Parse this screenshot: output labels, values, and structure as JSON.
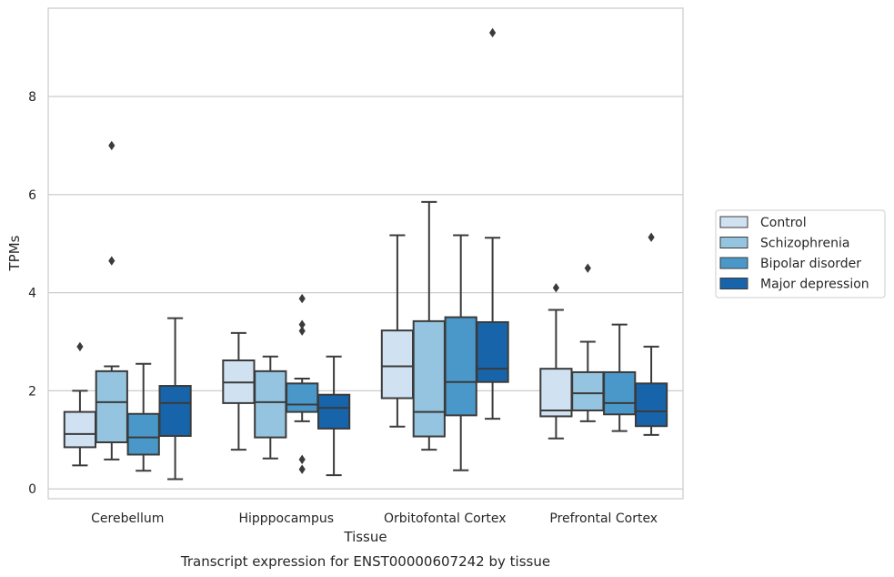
{
  "chart_data": {
    "type": "box",
    "caption": "Transcript expression for ENST00000607242 by tissue",
    "xlabel": "Tissue",
    "ylabel": "TPMs",
    "ylim": [
      -0.2,
      9.8
    ],
    "yticks": [
      0,
      2,
      4,
      6,
      8
    ],
    "grid": true,
    "legend_position": "right",
    "categories": [
      "Cerebellum",
      "Hipppocampus",
      "Orbitofontal Cortex",
      "Prefrontal Cortex"
    ],
    "series": [
      {
        "name": "Control",
        "color": "#d0e1f2",
        "boxes": [
          {
            "whislo": 0.48,
            "q1": 0.85,
            "med": 1.12,
            "q3": 1.57,
            "whishi": 2.0,
            "fliers": [
              2.9
            ]
          },
          {
            "whislo": 0.8,
            "q1": 1.75,
            "med": 2.17,
            "q3": 2.62,
            "whishi": 3.18,
            "fliers": []
          },
          {
            "whislo": 1.27,
            "q1": 1.85,
            "med": 2.5,
            "q3": 3.23,
            "whishi": 5.17,
            "fliers": []
          },
          {
            "whislo": 1.03,
            "q1": 1.48,
            "med": 1.6,
            "q3": 2.45,
            "whishi": 3.65,
            "fliers": [
              4.1
            ]
          }
        ]
      },
      {
        "name": "Schizophrenia",
        "color": "#94c4df",
        "boxes": [
          {
            "whislo": 0.6,
            "q1": 0.95,
            "med": 1.77,
            "q3": 2.4,
            "whishi": 2.5,
            "fliers": [
              4.65,
              7.0
            ]
          },
          {
            "whislo": 0.62,
            "q1": 1.05,
            "med": 1.77,
            "q3": 2.4,
            "whishi": 2.7,
            "fliers": []
          },
          {
            "whislo": 0.8,
            "q1": 1.07,
            "med": 1.57,
            "q3": 3.42,
            "whishi": 5.85,
            "fliers": []
          },
          {
            "whislo": 1.38,
            "q1": 1.6,
            "med": 1.95,
            "q3": 2.38,
            "whishi": 3.0,
            "fliers": [
              4.5
            ]
          }
        ]
      },
      {
        "name": "Bipolar disorder",
        "color": "#4a98c9",
        "boxes": [
          {
            "whislo": 0.37,
            "q1": 0.7,
            "med": 1.05,
            "q3": 1.53,
            "whishi": 2.55,
            "fliers": []
          },
          {
            "whislo": 1.38,
            "q1": 1.57,
            "med": 1.72,
            "q3": 2.15,
            "whishi": 2.25,
            "fliers": [
              0.4,
              0.6,
              3.22,
              3.35,
              3.88
            ]
          },
          {
            "whislo": 0.38,
            "q1": 1.5,
            "med": 2.18,
            "q3": 3.5,
            "whishi": 5.17,
            "fliers": []
          },
          {
            "whislo": 1.18,
            "q1": 1.52,
            "med": 1.75,
            "q3": 2.38,
            "whishi": 3.35,
            "fliers": []
          }
        ]
      },
      {
        "name": "Major depression",
        "color": "#1764ab",
        "boxes": [
          {
            "whislo": 0.2,
            "q1": 1.08,
            "med": 1.75,
            "q3": 2.1,
            "whishi": 3.48,
            "fliers": []
          },
          {
            "whislo": 0.28,
            "q1": 1.23,
            "med": 1.65,
            "q3": 1.92,
            "whishi": 2.7,
            "fliers": []
          },
          {
            "whislo": 1.43,
            "q1": 2.18,
            "med": 2.45,
            "q3": 3.4,
            "whishi": 5.12,
            "fliers": [
              9.3
            ]
          },
          {
            "whislo": 1.1,
            "q1": 1.28,
            "med": 1.58,
            "q3": 2.15,
            "whishi": 2.9,
            "fliers": [
              5.13
            ]
          }
        ]
      }
    ]
  }
}
